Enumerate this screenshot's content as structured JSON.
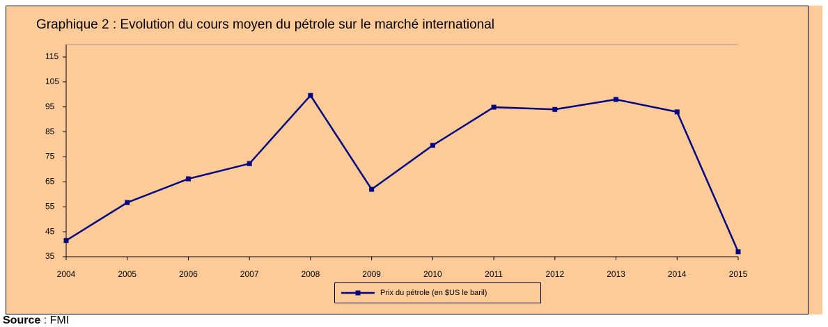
{
  "chart_data": {
    "type": "line",
    "title": "Graphique 2 : Evolution du cours moyen du pétrole sur le marché international",
    "categories": [
      "2004",
      "2005",
      "2006",
      "2007",
      "2008",
      "2009",
      "2010",
      "2011",
      "2012",
      "2013",
      "2014",
      "2015"
    ],
    "series": [
      {
        "name": "Prix du pétrole (en $US le baril)",
        "color": "#000080",
        "values": [
          41.5,
          56.7,
          66.2,
          72.3,
          99.6,
          62,
          79.6,
          94.9,
          94,
          98,
          93,
          37
        ]
      }
    ],
    "ylim": [
      35,
      120
    ],
    "yticks": [
      35,
      45,
      55,
      65,
      75,
      85,
      95,
      105,
      115
    ],
    "legend": "bottom"
  },
  "source": {
    "label": "Source",
    "text": " : FMI"
  }
}
